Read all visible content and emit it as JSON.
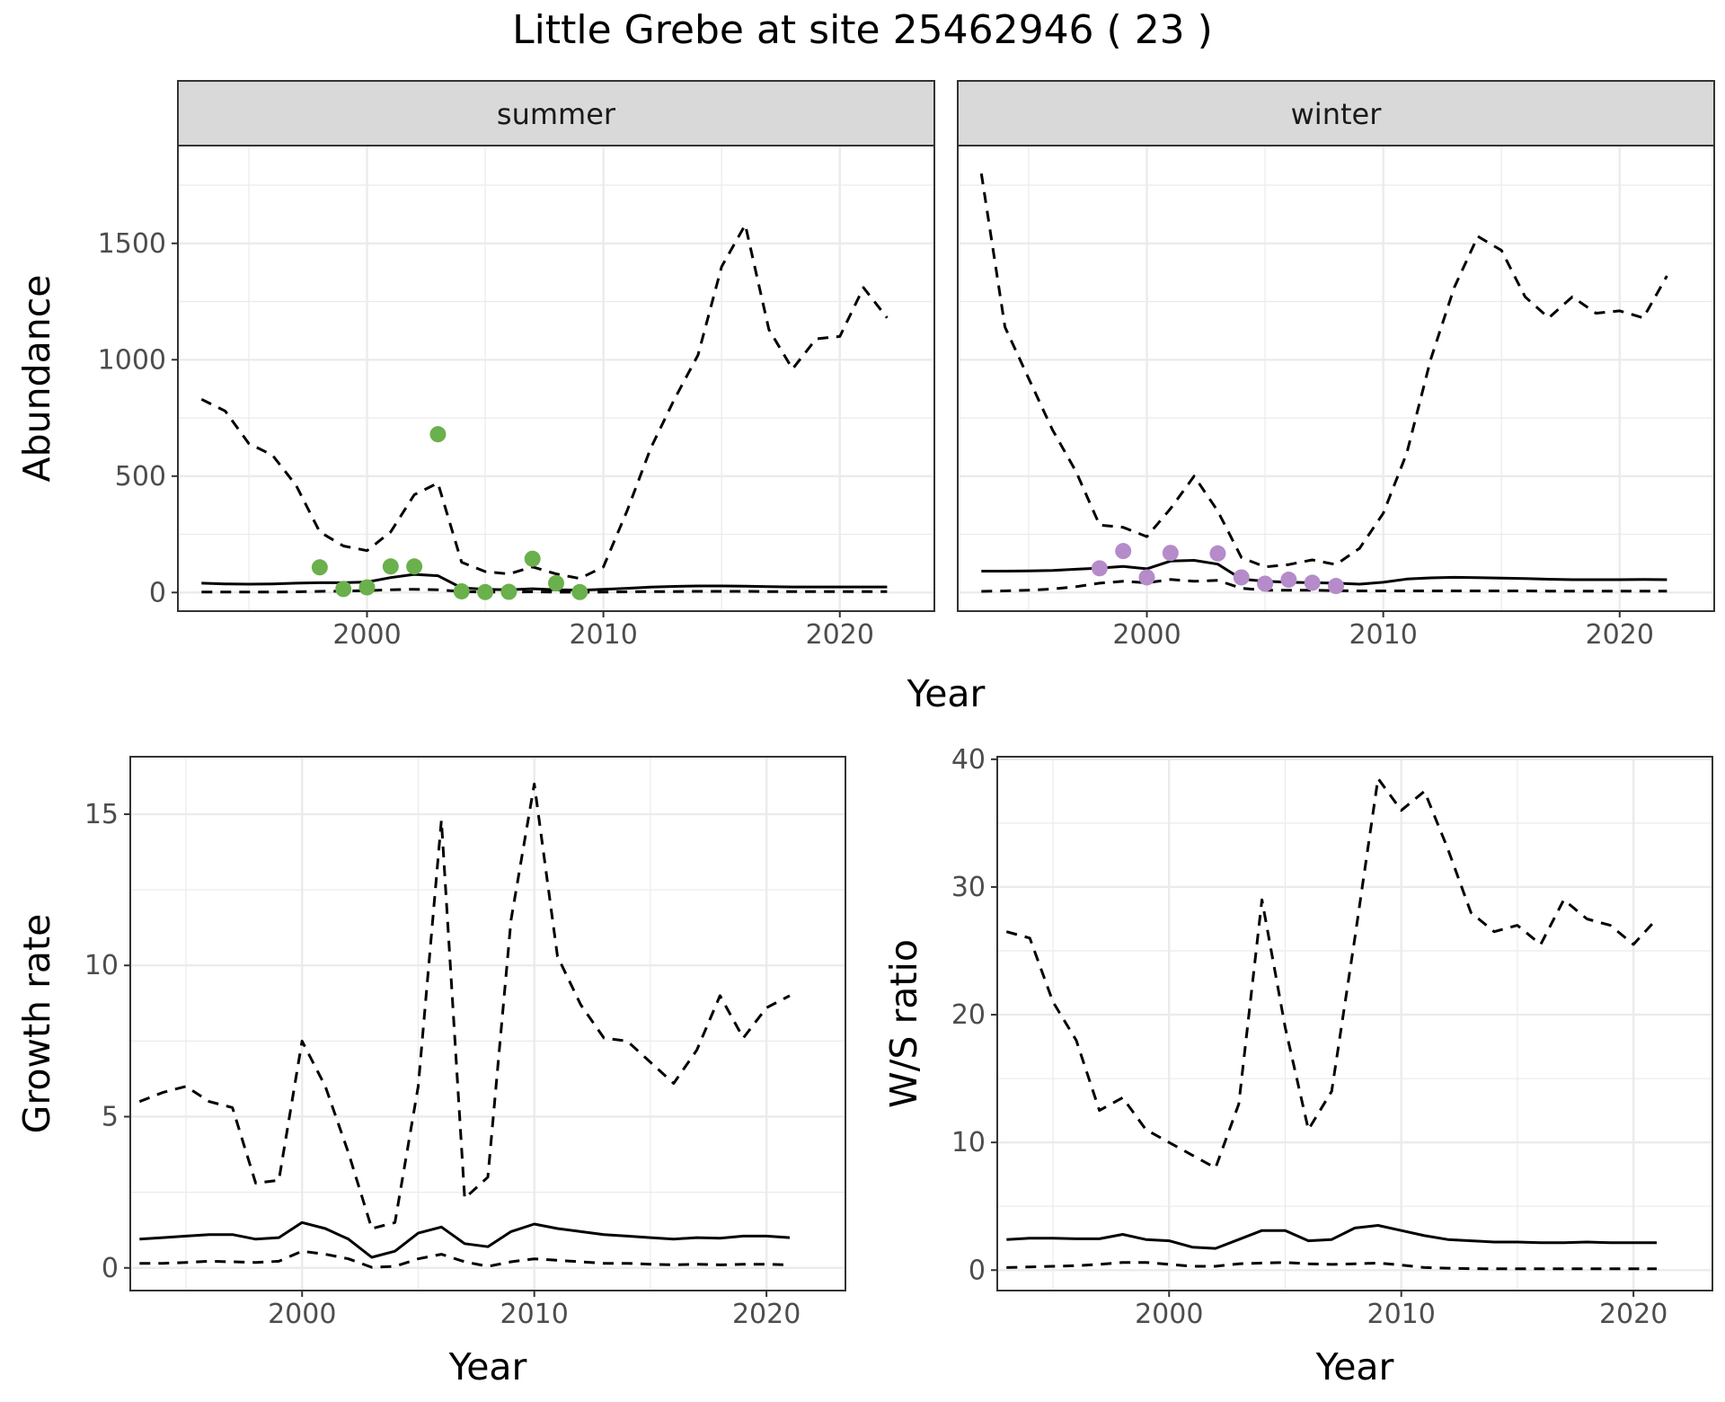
{
  "title": "Little Grebe at site 25462946 ( 23 )",
  "colors": {
    "summer_points": "#6ab04c",
    "winter_points": "#b58bc9",
    "lines": "#000000",
    "grid": "#ebebeb",
    "strip_bg": "#d9d9d9"
  },
  "chart_data": [
    {
      "id": "abundance",
      "type": "line",
      "ylabel": "Abundance",
      "xlabel": "Year",
      "xlim": [
        1992,
        2024
      ],
      "ylim": [
        -80,
        1920
      ],
      "xticks": [
        "2000",
        "2010",
        "2020"
      ],
      "yticks": [
        "0",
        "500",
        "1000",
        "1500"
      ],
      "grid": true,
      "facets": [
        {
          "label": "summer",
          "point_color": "#6ab04c",
          "x": [
            1993,
            1994,
            1995,
            1996,
            1997,
            1998,
            1999,
            2000,
            2001,
            2002,
            2003,
            2004,
            2005,
            2006,
            2007,
            2008,
            2009,
            2010,
            2011,
            2012,
            2013,
            2014,
            2015,
            2016,
            2017,
            2018,
            2019,
            2020,
            2021,
            2022
          ],
          "series": [
            {
              "name": "",
              "style": "solid",
              "values": [
                40,
                37,
                36,
                37,
                40,
                42,
                42,
                45,
                64,
                78,
                72,
                20,
                14,
                12,
                16,
                12,
                10,
                14,
                18,
                23,
                26,
                28,
                28,
                27,
                25,
                24,
                24,
                24,
                24,
                24
              ]
            },
            {
              "name": "",
              "style": "dashed",
              "values": [
                830,
                780,
                640,
                590,
                460,
                260,
                200,
                180,
                260,
                420,
                470,
                130,
                90,
                80,
                110,
                80,
                60,
                110,
                350,
                620,
                830,
                1020,
                1400,
                1580,
                1130,
                960,
                1090,
                1100,
                1310,
                1180
              ]
            },
            {
              "name": "",
              "style": "dashed",
              "values": [
                2,
                2,
                2,
                2,
                3,
                5,
                6,
                8,
                12,
                14,
                12,
                4,
                2,
                2,
                3,
                2,
                1,
                2,
                3,
                4,
                4,
                5,
                5,
                5,
                4,
                4,
                4,
                4,
                4,
                4
              ]
            }
          ],
          "points": {
            "x": [
              1998,
              1999,
              2000,
              2001,
              2002,
              2003,
              2004,
              2005,
              2006,
              2007,
              2008,
              2009
            ],
            "y": [
              108,
              15,
              22,
              112,
              112,
              680,
              5,
              2,
              3,
              145,
              40,
              2
            ]
          }
        },
        {
          "label": "winter",
          "point_color": "#b58bc9",
          "x": [
            1993,
            1994,
            1995,
            1996,
            1997,
            1998,
            1999,
            2000,
            2001,
            2002,
            2003,
            2004,
            2005,
            2006,
            2007,
            2008,
            2009,
            2010,
            2011,
            2012,
            2013,
            2014,
            2015,
            2016,
            2017,
            2018,
            2019,
            2020,
            2021,
            2022
          ],
          "series": [
            {
              "name": "",
              "style": "solid",
              "values": [
                92,
                92,
                93,
                95,
                100,
                105,
                112,
                102,
                135,
                138,
                122,
                58,
                48,
                44,
                42,
                40,
                36,
                44,
                58,
                63,
                65,
                64,
                62,
                60,
                57,
                55,
                55,
                55,
                56,
                55
              ]
            },
            {
              "name": "",
              "style": "dashed",
              "values": [
                1800,
                1140,
                920,
                700,
                520,
                290,
                280,
                240,
                360,
                500,
                350,
                150,
                110,
                120,
                140,
                120,
                190,
                340,
                600,
                1000,
                1310,
                1530,
                1470,
                1270,
                1180,
                1270,
                1200,
                1210,
                1180,
                1360
              ]
            },
            {
              "name": "",
              "style": "dashed",
              "values": [
                5,
                7,
                10,
                15,
                25,
                40,
                48,
                42,
                56,
                48,
                52,
                18,
                10,
                10,
                10,
                8,
                7,
                7,
                7,
                7,
                7,
                7,
                7,
                7,
                6,
                6,
                6,
                6,
                6,
                6
              ]
            }
          ],
          "points": {
            "x": [
              1998,
              1999,
              2000,
              2001,
              2002,
              2003,
              2004,
              2005,
              2006,
              2007,
              2008
            ],
            "y": [
              104,
              178,
              65,
              170,
              null,
              168,
              65,
              38,
              55,
              42,
              28
            ]
          }
        }
      ]
    },
    {
      "id": "growth",
      "type": "line",
      "ylabel": "Growth rate",
      "xlabel": "Year",
      "xlim": [
        1992.6,
        2023.4
      ],
      "ylim": [
        -0.75,
        16.9
      ],
      "xticks": [
        "2000",
        "2010",
        "2020"
      ],
      "yticks": [
        "0",
        "5",
        "10",
        "15"
      ],
      "grid": true,
      "x": [
        1993,
        1994,
        1995,
        1996,
        1997,
        1998,
        1999,
        2000,
        2001,
        2002,
        2003,
        2004,
        2005,
        2006,
        2007,
        2008,
        2009,
        2010,
        2011,
        2012,
        2013,
        2014,
        2015,
        2016,
        2017,
        2018,
        2019,
        2020,
        2021
      ],
      "series": [
        {
          "name": "",
          "style": "solid",
          "values": [
            0.95,
            1.0,
            1.05,
            1.1,
            1.1,
            0.95,
            1.0,
            1.5,
            1.3,
            0.95,
            0.35,
            0.55,
            1.15,
            1.35,
            0.8,
            0.7,
            1.2,
            1.45,
            1.3,
            1.2,
            1.1,
            1.05,
            1.0,
            0.95,
            1.0,
            0.98,
            1.05,
            1.05,
            1.0
          ]
        },
        {
          "name": "",
          "style": "dashed",
          "values": [
            5.5,
            5.8,
            6.0,
            5.5,
            5.3,
            2.8,
            2.9,
            7.5,
            6.0,
            3.8,
            1.3,
            1.5,
            6.0,
            14.8,
            2.3,
            3.0,
            11.5,
            16.0,
            10.3,
            8.7,
            7.6,
            7.5,
            6.8,
            6.1,
            7.2,
            9.0,
            7.6,
            8.6,
            9.0
          ]
        },
        {
          "name": "",
          "style": "dashed",
          "values": [
            0.15,
            0.15,
            0.18,
            0.22,
            0.2,
            0.18,
            0.22,
            0.55,
            0.45,
            0.3,
            0.02,
            0.05,
            0.3,
            0.45,
            0.2,
            0.05,
            0.2,
            0.3,
            0.25,
            0.2,
            0.15,
            0.15,
            0.12,
            0.1,
            0.12,
            0.1,
            0.12,
            0.12,
            0.1
          ]
        }
      ]
    },
    {
      "id": "ws",
      "type": "line",
      "ylabel": "W/S ratio",
      "xlabel": "Year",
      "xlim": [
        1992.6,
        2023.4
      ],
      "ylim": [
        -1.6,
        40.2
      ],
      "xticks": [
        "2000",
        "2010",
        "2020"
      ],
      "yticks": [
        "0",
        "10",
        "20",
        "30",
        "40"
      ],
      "grid": true,
      "x": [
        1993,
        1994,
        1995,
        1996,
        1997,
        1998,
        1999,
        2000,
        2001,
        2002,
        2003,
        2004,
        2005,
        2006,
        2007,
        2008,
        2009,
        2010,
        2011,
        2012,
        2013,
        2014,
        2015,
        2016,
        2017,
        2018,
        2019,
        2020,
        2021
      ],
      "series": [
        {
          "name": "",
          "style": "solid",
          "values": [
            2.4,
            2.5,
            2.5,
            2.45,
            2.45,
            2.8,
            2.4,
            2.3,
            1.8,
            1.7,
            2.4,
            3.1,
            3.1,
            2.3,
            2.4,
            3.3,
            3.5,
            3.1,
            2.7,
            2.4,
            2.3,
            2.2,
            2.2,
            2.15,
            2.15,
            2.2,
            2.15,
            2.15,
            2.15
          ]
        },
        {
          "name": "",
          "style": "dashed",
          "values": [
            26.5,
            26.0,
            21.0,
            18.0,
            12.5,
            13.5,
            11.0,
            10.0,
            9.0,
            8.0,
            13.0,
            29.0,
            19.0,
            11.0,
            14.0,
            26.0,
            38.5,
            36.0,
            37.5,
            33.0,
            28.0,
            26.5,
            27.0,
            25.5,
            29.0,
            27.5,
            27.0,
            25.5,
            27.5
          ]
        },
        {
          "name": "",
          "style": "dashed",
          "values": [
            0.2,
            0.25,
            0.3,
            0.35,
            0.45,
            0.6,
            0.6,
            0.45,
            0.3,
            0.3,
            0.5,
            0.55,
            0.6,
            0.5,
            0.45,
            0.5,
            0.55,
            0.4,
            0.2,
            0.15,
            0.12,
            0.1,
            0.1,
            0.1,
            0.1,
            0.1,
            0.1,
            0.1,
            0.1
          ]
        }
      ]
    }
  ]
}
